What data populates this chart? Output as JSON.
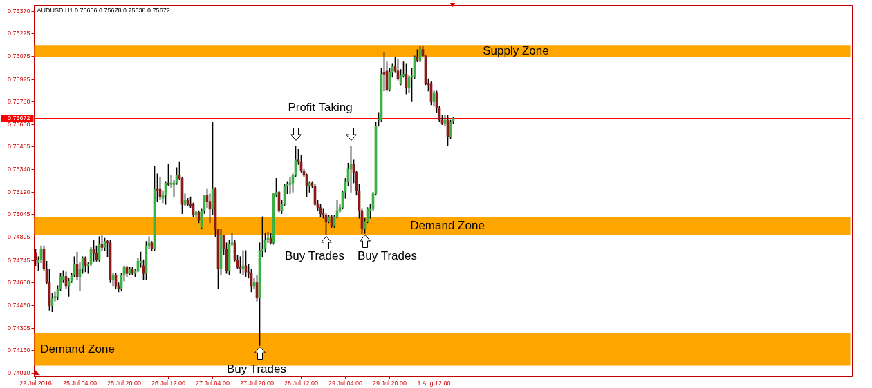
{
  "chart_data": {
    "type": "candlestick",
    "title": "AUDUSD,H1 0.75656 0.75678 0.75638 0.75672",
    "categories": [
      "22 Jul 2016",
      null,
      null,
      null,
      null,
      null,
      null,
      null,
      null,
      null,
      null,
      null,
      null,
      null,
      null,
      null,
      "25 Jul 04:00",
      null,
      null,
      null,
      null,
      null,
      null,
      null,
      null,
      null,
      null,
      null,
      null,
      null,
      null,
      null,
      "25 Jul 20:00",
      null,
      null,
      null,
      null,
      null,
      null,
      null,
      null,
      null,
      null,
      null,
      null,
      null,
      null,
      null,
      "26 Jul 12:00",
      null,
      null,
      null,
      null,
      null,
      null,
      null,
      null,
      null,
      null,
      null,
      null,
      null,
      null,
      null,
      "27 Jul 04:00",
      null,
      null,
      null,
      null,
      null,
      null,
      null,
      null,
      null,
      null,
      null,
      null,
      null,
      null,
      null,
      "27 Jul 20:00",
      null,
      null,
      null,
      null,
      null,
      null,
      null,
      null,
      null,
      null,
      null,
      null,
      null,
      null,
      null,
      "28 Jul 12:00",
      null,
      null,
      null,
      null,
      null,
      null,
      null,
      null,
      null,
      null,
      null,
      null,
      null,
      null,
      null,
      "29 Jul 04:00",
      null,
      null,
      null,
      null,
      null,
      null,
      null,
      null,
      null,
      null,
      null,
      null,
      null,
      null,
      null,
      "29 Jul 20:00",
      null,
      null,
      null,
      null,
      null,
      null,
      null,
      null,
      null,
      null,
      null,
      null,
      null,
      null,
      null,
      "1 Aug 12:00",
      null,
      null,
      null,
      null,
      null,
      null,
      null
    ],
    "ohlc": [
      [
        0.7479,
        0.7482,
        0.7471,
        0.7475
      ],
      [
        0.7473,
        0.7477,
        0.7468,
        0.7475
      ],
      [
        0.7475,
        0.7484,
        0.7473,
        0.7482
      ],
      [
        0.7482,
        0.7484,
        0.7468,
        0.7469
      ],
      [
        0.7469,
        0.7474,
        0.7459,
        0.746
      ],
      [
        0.746,
        0.7469,
        0.7442,
        0.7445
      ],
      [
        0.7445,
        0.7453,
        0.7441,
        0.745
      ],
      [
        0.745,
        0.7454,
        0.7448,
        0.7451
      ],
      [
        0.7451,
        0.7458,
        0.7449,
        0.7456
      ],
      [
        0.7456,
        0.7466,
        0.7455,
        0.7464
      ],
      [
        0.7462,
        0.7468,
        0.746,
        0.7464
      ],
      [
        0.7464,
        0.7467,
        0.7456,
        0.7458
      ],
      [
        0.7458,
        0.7463,
        0.7451,
        0.7461
      ],
      [
        0.7461,
        0.7466,
        0.746,
        0.7465
      ],
      [
        0.7465,
        0.7477,
        0.7464,
        0.7472
      ],
      [
        0.7472,
        0.748,
        0.7462,
        0.7464
      ],
      [
        0.7464,
        0.7473,
        0.7455,
        0.7469
      ],
      [
        0.7469,
        0.7477,
        0.7466,
        0.7476
      ],
      [
        0.7476,
        0.7477,
        0.7467,
        0.7471
      ],
      [
        0.7471,
        0.7473,
        0.7466,
        0.7472
      ],
      [
        0.7472,
        0.7483,
        0.7471,
        0.7482
      ],
      [
        0.7482,
        0.7488,
        0.7474,
        0.7479
      ],
      [
        0.7479,
        0.7484,
        0.7474,
        0.7475
      ],
      [
        0.7475,
        0.749,
        0.7474,
        0.7485
      ],
      [
        0.7485,
        0.7491,
        0.7481,
        0.7483
      ],
      [
        0.7483,
        0.7489,
        0.7481,
        0.7487
      ],
      [
        0.7487,
        0.7488,
        0.7477,
        0.7486
      ],
      [
        0.7486,
        0.7488,
        0.746,
        0.7462
      ],
      [
        0.7462,
        0.7466,
        0.7458,
        0.7465
      ],
      [
        0.7465,
        0.7466,
        0.7456,
        0.7458
      ],
      [
        0.7458,
        0.746,
        0.7454,
        0.7456
      ],
      [
        0.7456,
        0.7466,
        0.7455,
        0.7465
      ],
      [
        0.7465,
        0.7471,
        0.7461,
        0.747
      ],
      [
        0.747,
        0.7471,
        0.7464,
        0.7466
      ],
      [
        0.7466,
        0.747,
        0.7465,
        0.7469
      ],
      [
        0.7469,
        0.747,
        0.7465,
        0.7466
      ],
      [
        0.7466,
        0.7469,
        0.7464,
        0.7468
      ],
      [
        0.7468,
        0.7476,
        0.7467,
        0.7474
      ],
      [
        0.7473,
        0.748,
        0.747,
        0.7474
      ],
      [
        0.7471,
        0.7475,
        0.7462,
        0.7466
      ],
      [
        0.7466,
        0.7487,
        0.7462,
        0.7484
      ],
      [
        0.7484,
        0.749,
        0.7482,
        0.7486
      ],
      [
        0.7486,
        0.7487,
        0.7481,
        0.7482
      ],
      [
        0.7482,
        0.7536,
        0.7481,
        0.7521
      ],
      [
        0.7521,
        0.7531,
        0.7513,
        0.752
      ],
      [
        0.7521,
        0.7529,
        0.7514,
        0.7516
      ],
      [
        0.7515,
        0.752,
        0.7512,
        0.7517
      ],
      [
        0.7517,
        0.7526,
        0.7511,
        0.7525
      ],
      [
        0.7525,
        0.7537,
        0.7523,
        0.7524
      ],
      [
        0.7524,
        0.753,
        0.7522,
        0.7525
      ],
      [
        0.7524,
        0.7527,
        0.7516,
        0.7525
      ],
      [
        0.7525,
        0.7535,
        0.7524,
        0.753
      ],
      [
        0.753,
        0.7539,
        0.7527,
        0.7528
      ],
      [
        0.7528,
        0.7529,
        0.7505,
        0.7511
      ],
      [
        0.7511,
        0.7518,
        0.751,
        0.7514
      ],
      [
        0.7514,
        0.7515,
        0.751,
        0.7511
      ],
      [
        0.7511,
        0.7516,
        0.7509,
        0.751
      ],
      [
        0.7511,
        0.7512,
        0.7503,
        0.7504
      ],
      [
        0.7504,
        0.7507,
        0.7503,
        0.7506
      ],
      [
        0.7506,
        0.7507,
        0.7499,
        0.7501
      ],
      [
        0.7496,
        0.7508,
        0.7495,
        0.7507
      ],
      [
        0.7507,
        0.7517,
        0.7505,
        0.7517
      ],
      [
        0.7517,
        0.7521,
        0.7509,
        0.7513
      ],
      [
        0.7513,
        0.7518,
        0.7499,
        0.7508
      ],
      [
        0.7508,
        0.7565,
        0.7504,
        0.7521
      ],
      [
        0.7521,
        0.7522,
        0.749,
        0.7495
      ],
      [
        0.7495,
        0.7495,
        0.7456,
        0.7469
      ],
      [
        0.7469,
        0.7495,
        0.7465,
        0.7491
      ],
      [
        0.7491,
        0.7491,
        0.7478,
        0.7482
      ],
      [
        0.7482,
        0.7486,
        0.7466,
        0.7468
      ],
      [
        0.7468,
        0.7488,
        0.7465,
        0.7485
      ],
      [
        0.7485,
        0.7492,
        0.7484,
        0.7486
      ],
      [
        0.7486,
        0.7488,
        0.7474,
        0.7475
      ],
      [
        0.7475,
        0.7478,
        0.7469,
        0.747
      ],
      [
        0.747,
        0.7477,
        0.7466,
        0.7469
      ],
      [
        0.7469,
        0.7481,
        0.7465,
        0.7471
      ],
      [
        0.7471,
        0.7481,
        0.7464,
        0.7467
      ],
      [
        0.7467,
        0.7472,
        0.7463,
        0.7466
      ],
      [
        0.7466,
        0.7469,
        0.7454,
        0.7458
      ],
      [
        0.7458,
        0.7463,
        0.7456,
        0.746
      ],
      [
        0.746,
        0.7465,
        0.7448,
        0.745
      ],
      [
        0.745,
        0.7486,
        0.7419,
        0.7481
      ],
      [
        0.7481,
        0.7503,
        0.7477,
        0.7482
      ],
      [
        0.7482,
        0.7492,
        0.748,
        0.7488
      ],
      [
        0.7488,
        0.7493,
        0.7486,
        0.7489
      ],
      [
        0.7489,
        0.7492,
        0.7485,
        0.7486
      ],
      [
        0.7486,
        0.7518,
        0.7485,
        0.7518
      ],
      [
        0.7517,
        0.7528,
        0.7516,
        0.7519
      ],
      [
        0.7519,
        0.752,
        0.7506,
        0.7507
      ],
      [
        0.7507,
        0.7514,
        0.7505,
        0.7511
      ],
      [
        0.7511,
        0.7524,
        0.751,
        0.7523
      ],
      [
        0.7523,
        0.7526,
        0.7518,
        0.7524
      ],
      [
        0.7524,
        0.7529,
        0.7518,
        0.7525
      ],
      [
        0.7525,
        0.7531,
        0.7519,
        0.753
      ],
      [
        0.753,
        0.7549,
        0.7529,
        0.754
      ],
      [
        0.754,
        0.7547,
        0.7537,
        0.7539
      ],
      [
        0.7539,
        0.7543,
        0.7532,
        0.7533
      ],
      [
        0.7533,
        0.7534,
        0.7529,
        0.753
      ],
      [
        0.753,
        0.7531,
        0.7516,
        0.7523
      ],
      [
        0.7523,
        0.7526,
        0.7519,
        0.7525
      ],
      [
        0.7525,
        0.7526,
        0.7522,
        0.7523
      ],
      [
        0.7523,
        0.7524,
        0.751,
        0.7511
      ],
      [
        0.7511,
        0.7514,
        0.7507,
        0.7509
      ],
      [
        0.7509,
        0.7511,
        0.7503,
        0.7505
      ],
      [
        0.7505,
        0.7508,
        0.7502,
        0.7504
      ],
      [
        0.7504,
        0.7505,
        0.7491,
        0.75
      ],
      [
        0.75,
        0.7504,
        0.7499,
        0.7503
      ],
      [
        0.7503,
        0.7504,
        0.7496,
        0.7497
      ],
      [
        0.7497,
        0.7504,
        0.7496,
        0.7503
      ],
      [
        0.7503,
        0.7514,
        0.7502,
        0.7507
      ],
      [
        0.7507,
        0.7511,
        0.7506,
        0.7509
      ],
      [
        0.7509,
        0.752,
        0.7508,
        0.7519
      ],
      [
        0.7519,
        0.7528,
        0.7515,
        0.7526
      ],
      [
        0.7526,
        0.7538,
        0.7523,
        0.7534
      ],
      [
        0.7534,
        0.7549,
        0.7519,
        0.7537
      ],
      [
        0.7537,
        0.754,
        0.7525,
        0.7532
      ],
      [
        0.7532,
        0.7533,
        0.7517,
        0.752
      ],
      [
        0.752,
        0.7524,
        0.7502,
        0.7507
      ],
      [
        0.7507,
        0.7508,
        0.7492,
        0.7495
      ],
      [
        0.7495,
        0.7502,
        0.7492,
        0.75
      ],
      [
        0.75,
        0.7509,
        0.7499,
        0.7508
      ],
      [
        0.7507,
        0.7511,
        0.7502,
        0.7508
      ],
      [
        0.7508,
        0.7519,
        0.7507,
        0.7518
      ],
      [
        0.7518,
        0.7565,
        0.7517,
        0.7562
      ],
      [
        0.7566,
        0.7571,
        0.7562,
        0.7567
      ],
      [
        0.7566,
        0.76,
        0.7565,
        0.7596
      ],
      [
        0.7597,
        0.761,
        0.7585,
        0.7596
      ],
      [
        0.7598,
        0.7604,
        0.7585,
        0.7586
      ],
      [
        0.7586,
        0.76,
        0.7585,
        0.7597
      ],
      [
        0.7597,
        0.7603,
        0.7594,
        0.7601
      ],
      [
        0.7601,
        0.7607,
        0.7597,
        0.7598
      ],
      [
        0.7598,
        0.7606,
        0.7592,
        0.7593
      ],
      [
        0.759,
        0.7599,
        0.7589,
        0.7595
      ],
      [
        0.7595,
        0.7604,
        0.7594,
        0.7596
      ],
      [
        0.7596,
        0.7603,
        0.7583,
        0.7587
      ],
      [
        0.7587,
        0.7595,
        0.7584,
        0.7594
      ],
      [
        0.7594,
        0.76,
        0.7578,
        0.7595
      ],
      [
        0.7594,
        0.7608,
        0.7593,
        0.7607
      ],
      [
        0.7607,
        0.7612,
        0.7604,
        0.7605
      ],
      [
        0.7605,
        0.7614,
        0.7604,
        0.7612
      ],
      [
        0.7612,
        0.7614,
        0.7607,
        0.7608
      ],
      [
        0.7608,
        0.7608,
        0.7589,
        0.759
      ],
      [
        0.759,
        0.7593,
        0.7585,
        0.7589
      ],
      [
        0.759,
        0.7591,
        0.7576,
        0.7578
      ],
      [
        0.7578,
        0.7585,
        0.7575,
        0.7584
      ],
      [
        0.7584,
        0.7585,
        0.7571,
        0.7574
      ],
      [
        0.7574,
        0.7575,
        0.7565,
        0.7566
      ],
      [
        0.7566,
        0.7569,
        0.7563,
        0.7564
      ],
      [
        0.7564,
        0.7569,
        0.7562,
        0.7566
      ],
      [
        0.7566,
        0.7569,
        0.7549,
        0.7555
      ],
      [
        0.7555,
        0.7566,
        0.7554,
        0.7565
      ],
      [
        0.75656,
        0.75678,
        0.75638,
        0.75672
      ]
    ],
    "colors": [
      "#8b1a1a",
      "#3cb043",
      "#3cb043",
      "#8b1a1a",
      "#8b1a1a",
      "#8b1a1a",
      "#3cb043",
      "#3cb043",
      "#3cb043",
      "#3cb043",
      "#3cb043",
      "#8b1a1a",
      "#3cb043",
      "#3cb043",
      "#3cb043",
      "#8b1a1a",
      "#3cb043",
      "#3cb043",
      "#8b1a1a",
      "#3cb043",
      "#3cb043",
      "#8b1a1a",
      "#8b1a1a",
      "#3cb043",
      "#8b1a1a",
      "#3cb043",
      "#8b1a1a",
      "#8b1a1a",
      "#3cb043",
      "#8b1a1a",
      "#8b1a1a",
      "#3cb043",
      "#3cb043",
      "#8b1a1a",
      "#3cb043",
      "#8b1a1a",
      "#3cb043",
      "#3cb043",
      "#3cb043",
      "#8b1a1a",
      "#3cb043",
      "#3cb043",
      "#8b1a1a",
      "#3cb043",
      "#8b1a1a",
      "#8b1a1a",
      "#3cb043",
      "#3cb043",
      "#8b1a1a",
      "#3cb043",
      "#3cb043",
      "#3cb043",
      "#8b1a1a",
      "#8b1a1a",
      "#3cb043",
      "#8b1a1a",
      "#8b1a1a",
      "#8b1a1a",
      "#3cb043",
      "#8b1a1a",
      "#3cb043",
      "#3cb043",
      "#8b1a1a",
      "#8b1a1a",
      "#3cb043",
      "#8b1a1a",
      "#8b1a1a",
      "#3cb043",
      "#8b1a1a",
      "#8b1a1a",
      "#3cb043",
      "#3cb043",
      "#8b1a1a",
      "#8b1a1a",
      "#8b1a1a",
      "#3cb043",
      "#8b1a1a",
      "#8b1a1a",
      "#8b1a1a",
      "#3cb043",
      "#8b1a1a",
      "#3cb043",
      "#3cb043",
      "#3cb043",
      "#3cb043",
      "#8b1a1a",
      "#3cb043",
      "#3cb043",
      "#8b1a1a",
      "#3cb043",
      "#3cb043",
      "#3cb043",
      "#3cb043",
      "#3cb043",
      "#3cb043",
      "#8b1a1a",
      "#8b1a1a",
      "#8b1a1a",
      "#8b1a1a",
      "#3cb043",
      "#8b1a1a",
      "#8b1a1a",
      "#8b1a1a",
      "#8b1a1a",
      "#8b1a1a",
      "#8b1a1a",
      "#3cb043",
      "#8b1a1a",
      "#3cb043",
      "#3cb043",
      "#3cb043",
      "#3cb043",
      "#3cb043",
      "#3cb043",
      "#3cb043",
      "#8b1a1a",
      "#8b1a1a",
      "#8b1a1a",
      "#8b1a1a",
      "#3cb043",
      "#3cb043",
      "#3cb043",
      "#3cb043",
      "#3cb043",
      "#3cb043",
      "#3cb043",
      "#8b1a1a",
      "#8b1a1a",
      "#3cb043",
      "#3cb043",
      "#8b1a1a",
      "#8b1a1a",
      "#3cb043",
      "#3cb043",
      "#8b1a1a",
      "#3cb043",
      "#3cb043",
      "#3cb043",
      "#8b1a1a",
      "#3cb043",
      "#8b1a1a",
      "#8b1a1a",
      "#8b1a1a",
      "#8b1a1a",
      "#3cb043",
      "#8b1a1a",
      "#8b1a1a",
      "#8b1a1a",
      "#3cb043",
      "#8b1a1a",
      "#3cb043",
      "#3cb043"
    ],
    "ylim": [
      0.7399,
      0.7641
    ],
    "yticks": [
      {
        "value": 0.7637,
        "label": "0.76370"
      },
      {
        "value": 0.76225,
        "label": "0.76225"
      },
      {
        "value": 0.76075,
        "label": "0.76075"
      },
      {
        "value": 0.75925,
        "label": "0.75925"
      },
      {
        "value": 0.7578,
        "label": "0.75780"
      },
      {
        "value": 0.7563,
        "label": "0.75630"
      },
      {
        "value": 0.75485,
        "label": "0.75485"
      },
      {
        "value": 0.7534,
        "label": "0.75340"
      },
      {
        "value": 0.7519,
        "label": "0.75190"
      },
      {
        "value": 0.75045,
        "label": "0.75045"
      },
      {
        "value": 0.74895,
        "label": "0.74895"
      },
      {
        "value": 0.74745,
        "label": "0.74745"
      },
      {
        "value": 0.746,
        "label": "0.74600"
      },
      {
        "value": 0.7445,
        "label": "0.74450"
      },
      {
        "value": 0.74305,
        "label": "0.74305"
      },
      {
        "value": 0.7416,
        "label": "0.74160"
      },
      {
        "value": 0.7401,
        "label": "0.74010"
      }
    ],
    "ref_lines": [
      {
        "axis": "y",
        "value": 0.75672,
        "label": "0.75672",
        "color": "#ff0000"
      }
    ],
    "bands": [
      {
        "axis": "y",
        "from": 0.7607,
        "to": 0.7615,
        "label": "Supply Zone",
        "color": "#ffa500"
      },
      {
        "axis": "y",
        "from": 0.7491,
        "to": 0.7503,
        "label": "Demand Zone",
        "color": "#ffa500"
      },
      {
        "axis": "y",
        "from": 0.7406,
        "to": 0.7427,
        "label": "Demand Zone",
        "color": "#ffa500"
      }
    ],
    "annotations": [
      "Profit Taking",
      "Buy Trades",
      "Buy Trades",
      "Buy Trades"
    ],
    "grid": false,
    "legend": false
  }
}
